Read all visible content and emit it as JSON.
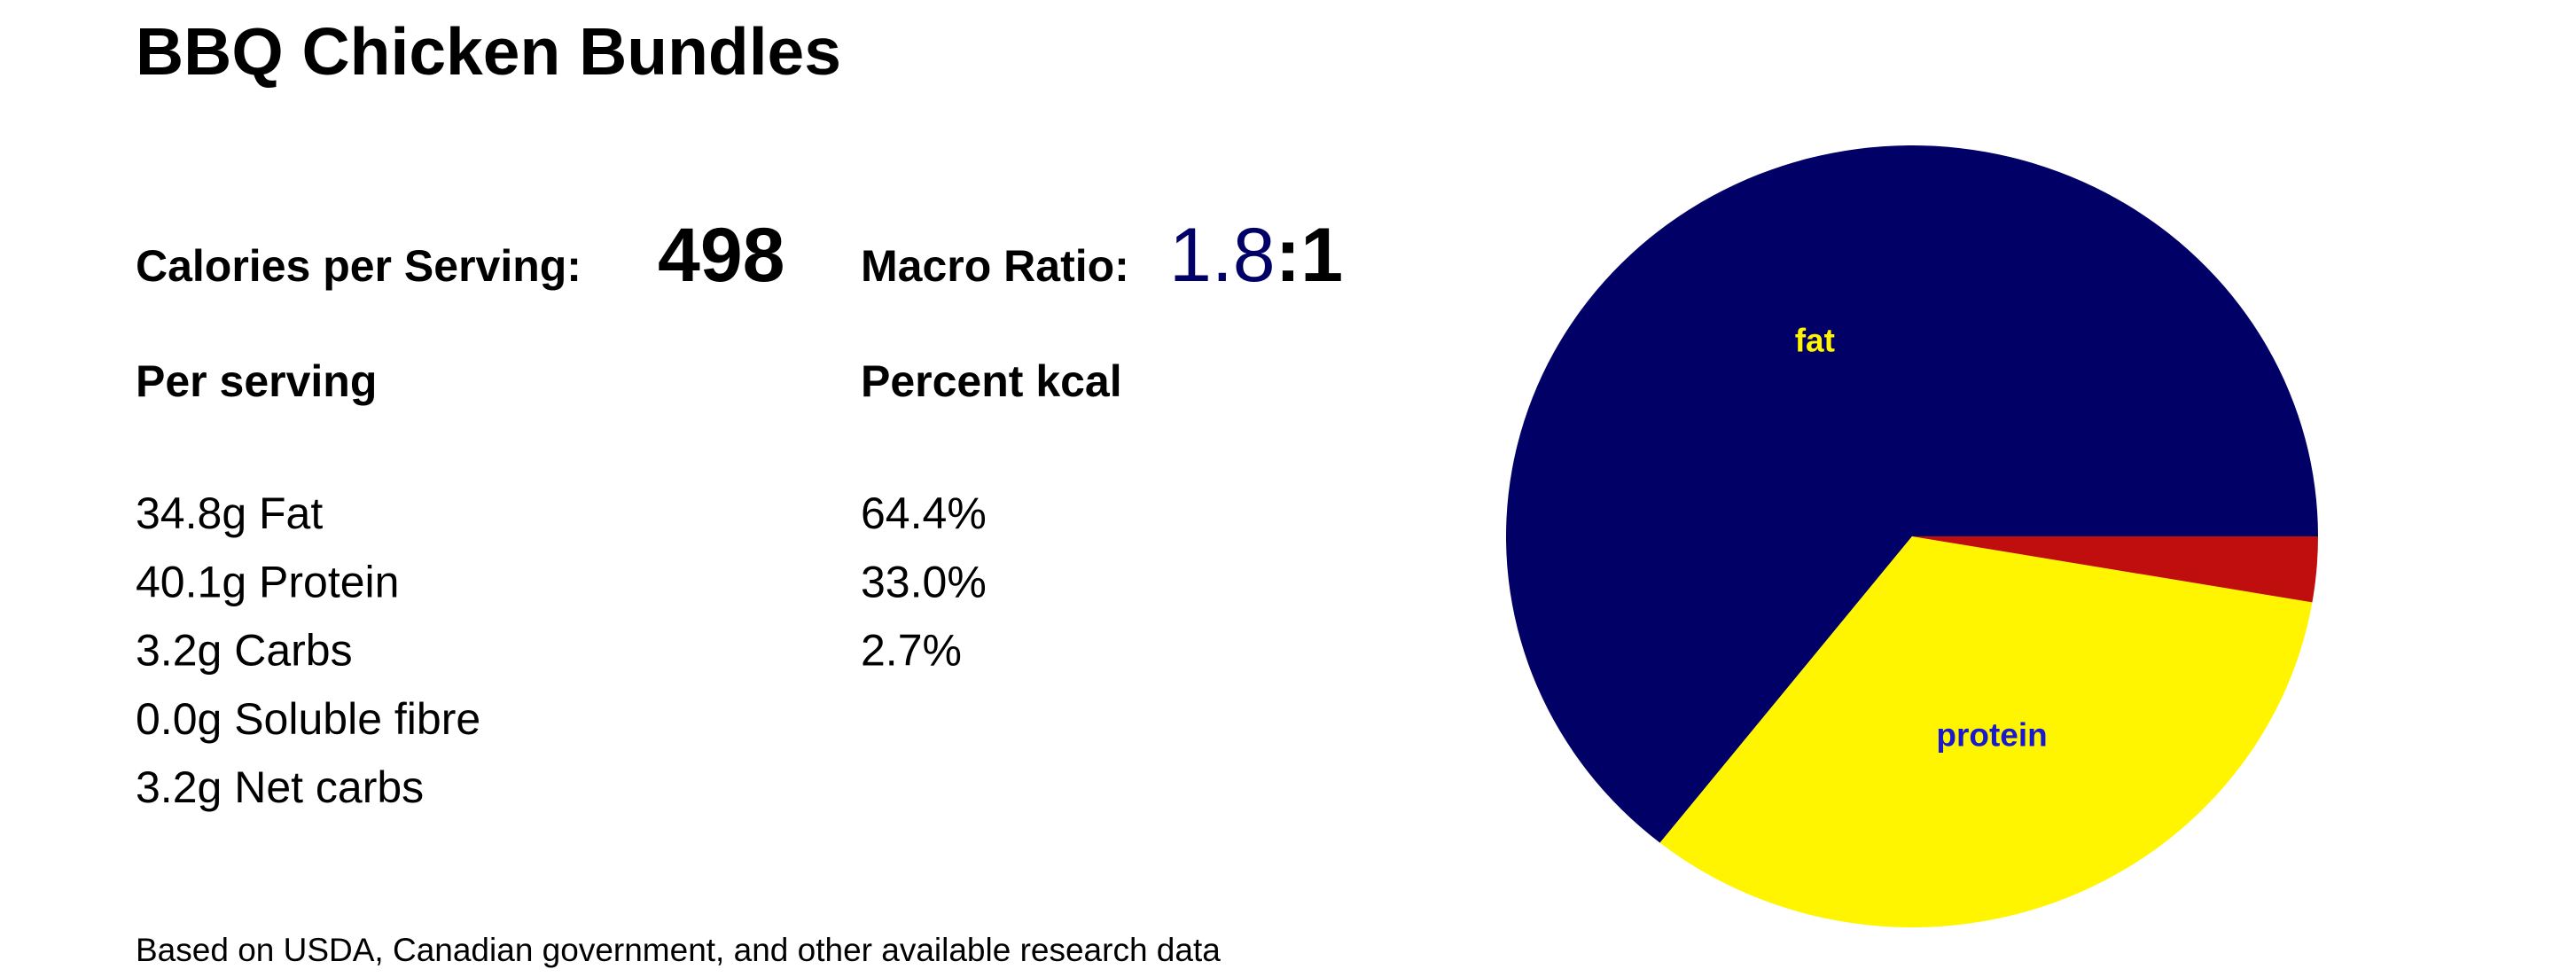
{
  "header": {
    "title": "BBQ Chicken Bundles"
  },
  "summary": {
    "calories_label": "Calories per Serving:",
    "calories_value": "498",
    "ratio_label": "Macro Ratio:",
    "ratio_value": "1.8",
    "ratio_suffix": ":1"
  },
  "per_serving": {
    "heading": "Per serving",
    "rows": [
      "34.8g Fat",
      "40.1g Protein",
      "3.2g Carbs",
      "0.0g Soluble fibre",
      "3.2g Net carbs"
    ]
  },
  "percent_kcal": {
    "heading": "Percent kcal",
    "rows": [
      "64.4%",
      "33.0%",
      "2.7%"
    ]
  },
  "footnote": "Based on USDA, Canadian government, and other available research data",
  "chart_data": {
    "type": "pie",
    "categories": [
      "fat",
      "protein",
      null
    ],
    "values": [
      64.4,
      33.0,
      2.7
    ],
    "colors": [
      "#000066",
      "#fff500",
      "#c00d0d"
    ],
    "label_colors": [
      "#fff500",
      "#1a1acc",
      "#ffffff"
    ]
  }
}
